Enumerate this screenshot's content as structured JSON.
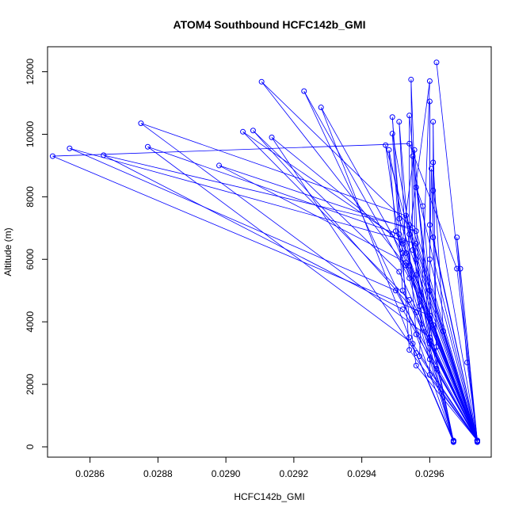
{
  "chart_data": {
    "type": "line",
    "title": "ATOM4 Southbound HCFC142b_GMI",
    "xlabel": "HCFC142b_GMI",
    "ylabel": "Altitude (m)",
    "xlim": [
      0.028475,
      0.029781
    ],
    "ylim": [
      -330,
      12800
    ],
    "xticks": [
      0.0286,
      0.0288,
      0.029,
      0.0292,
      0.0294,
      0.0296
    ],
    "xtick_labels": [
      "0.0286",
      "0.0288",
      "0.0290",
      "0.0292",
      "0.0294",
      "0.0296"
    ],
    "yticks": [
      0,
      2000,
      4000,
      6000,
      8000,
      10000,
      12000
    ],
    "ytick_labels": [
      "0",
      "2000",
      "4000",
      "6000",
      "8000",
      "10000",
      "12000"
    ],
    "grid": false,
    "series": [
      {
        "color": "#0000ff",
        "points": [
          [
            0.02974,
            200
          ],
          [
            0.02968,
            5700
          ],
          [
            0.02954,
            9700
          ],
          [
            0.02849,
            9300
          ],
          [
            0.0296,
            4200
          ],
          [
            0.02974,
            180
          ],
          [
            0.02956,
            6500
          ],
          [
            0.02854,
            9550
          ],
          [
            0.0295,
            5000
          ],
          [
            0.02974,
            200
          ],
          [
            0.02955,
            7000
          ],
          [
            0.02864,
            9330
          ],
          [
            0.02952,
            4400
          ],
          [
            0.02974,
            180
          ],
          [
            0.02953,
            7400
          ],
          [
            0.02875,
            10350
          ],
          [
            0.0296,
            3500
          ],
          [
            0.02974,
            150
          ],
          [
            0.02951,
            6800
          ],
          [
            0.02877,
            9600
          ],
          [
            0.02955,
            3300
          ],
          [
            0.02974,
            200
          ],
          [
            0.02956,
            6900
          ],
          [
            0.02898,
            9000
          ],
          [
            0.02953,
            5900
          ],
          [
            0.02974,
            170
          ],
          [
            0.02949,
            6800
          ],
          [
            0.02905,
            10080
          ],
          [
            0.02954,
            4700
          ],
          [
            0.02974,
            200
          ],
          [
            0.02951,
            5600
          ],
          [
            0.02908,
            10120
          ],
          [
            0.02956,
            4300
          ],
          [
            0.02967,
            170
          ],
          [
            0.02954,
            7100
          ],
          [
            0.029105,
            11680
          ],
          [
            0.02953,
            5800
          ],
          [
            0.02974,
            160
          ],
          [
            0.02952,
            6500
          ],
          [
            0.029135,
            9900
          ],
          [
            0.02956,
            3000
          ],
          [
            0.02967,
            200
          ],
          [
            0.02954,
            5400
          ],
          [
            0.02923,
            11380
          ],
          [
            0.0296,
            2800
          ],
          [
            0.02974,
            200
          ],
          [
            0.02952,
            6200
          ],
          [
            0.02928,
            10860
          ],
          [
            0.02954,
            3500
          ],
          [
            0.02967,
            150
          ],
          [
            0.02956,
            6000
          ],
          [
            0.02947,
            9650
          ],
          [
            0.02956,
            2600
          ],
          [
            0.02974,
            200
          ],
          [
            0.0295,
            6900
          ],
          [
            0.02948,
            9500
          ],
          [
            0.02958,
            3800
          ],
          [
            0.02974,
            180
          ],
          [
            0.02951,
            7300
          ],
          [
            0.02949,
            10550
          ],
          [
            0.02954,
            3100
          ],
          [
            0.02974,
            200
          ],
          [
            0.02952,
            5000
          ],
          [
            0.02949,
            10020
          ],
          [
            0.0296,
            3300
          ],
          [
            0.02974,
            200
          ],
          [
            0.02953,
            6200
          ],
          [
            0.02951,
            10400
          ],
          [
            0.02956,
            3600
          ],
          [
            0.02967,
            180
          ],
          [
            0.02954,
            5800
          ],
          [
            0.02954,
            10600
          ],
          [
            0.0296,
            4100
          ],
          [
            0.02974,
            200
          ],
          [
            0.02955,
            6300
          ],
          [
            0.029545,
            11750
          ],
          [
            0.02957,
            4500
          ],
          [
            0.02967,
            200
          ],
          [
            0.02956,
            5500
          ],
          [
            0.02955,
            9300
          ],
          [
            0.02961,
            3900
          ],
          [
            0.02974,
            180
          ],
          [
            0.02952,
            6600
          ],
          [
            0.029555,
            9500
          ],
          [
            0.0296,
            3400
          ],
          [
            0.02974,
            200
          ],
          [
            0.02954,
            6800
          ],
          [
            0.0296,
            11700
          ],
          [
            0.02957,
            2900
          ],
          [
            0.02974,
            200
          ],
          [
            0.0296,
            7100
          ],
          [
            0.0296,
            11050
          ],
          [
            0.0296,
            2300
          ],
          [
            0.02974,
            200
          ],
          [
            0.02961,
            6700
          ],
          [
            0.02961,
            10400
          ],
          [
            0.02962,
            2500
          ],
          [
            0.02974,
            200
          ],
          [
            0.0296,
            6000
          ],
          [
            0.029605,
            8900
          ],
          [
            0.02962,
            3200
          ],
          [
            0.02974,
            200
          ],
          [
            0.02961,
            8200
          ],
          [
            0.02961,
            9100
          ],
          [
            0.02964,
            3700
          ],
          [
            0.02974,
            200
          ],
          [
            0.02956,
            8300
          ],
          [
            0.02958,
            7700
          ],
          [
            0.0296,
            5000
          ],
          [
            0.02974,
            200
          ],
          [
            0.02969,
            5700
          ],
          [
            0.02968,
            6700
          ],
          [
            0.02971,
            2700
          ],
          [
            0.02974,
            200
          ],
          [
            0.02962,
            12300
          ]
        ]
      }
    ]
  }
}
